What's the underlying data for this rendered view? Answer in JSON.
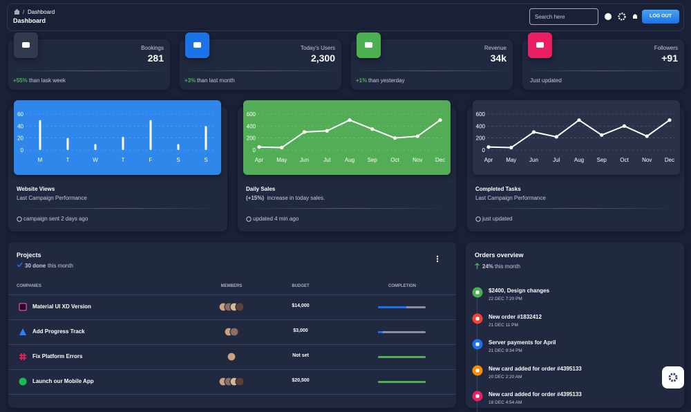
{
  "header": {
    "breadcrumb": "Dashboard",
    "title": "Dashboard",
    "search_placeholder": "Search here",
    "logout": "LOG OUT"
  },
  "stats": [
    {
      "label": "Bookings",
      "value": "281",
      "change": "+55%",
      "change_text": "than lask week",
      "color": "#323a50"
    },
    {
      "label": "Today's Users",
      "value": "2,300",
      "change": "+3%",
      "change_text": "than last month",
      "color": "#1A73E8"
    },
    {
      "label": "Revenue",
      "value": "34k",
      "change": "+1%",
      "change_text": "than yesterday",
      "color": "#4CAF50"
    },
    {
      "label": "Followers",
      "value": "+91",
      "footer": "Just updated",
      "color": "#e91e63"
    }
  ],
  "chart_data": [
    {
      "type": "bar",
      "title": "Website Views",
      "subtitle": "Last Campaign Performance",
      "note": "campaign sent 2 days ago",
      "categories": [
        "M",
        "T",
        "W",
        "T",
        "F",
        "S",
        "S"
      ],
      "values": [
        50,
        20,
        10,
        22,
        50,
        10,
        40
      ],
      "ylim": [
        0,
        60
      ],
      "yticks": [
        0,
        20,
        40,
        60
      ],
      "grid": true,
      "color": "#ffffff",
      "background": "#2f86eb"
    },
    {
      "type": "line",
      "title": "Daily Sales",
      "highlight": "(+15%)",
      "subtitle": "increase in today sales.",
      "note": "updated 4 min ago",
      "categories": [
        "Apr",
        "May",
        "Jun",
        "Jul",
        "Aug",
        "Sep",
        "Oct",
        "Nov",
        "Dec"
      ],
      "values": [
        50,
        40,
        300,
        320,
        500,
        350,
        200,
        230,
        500
      ],
      "ylim": [
        0,
        600
      ],
      "yticks": [
        0,
        200,
        400,
        600
      ],
      "grid": true,
      "color": "#ffffff",
      "background": "#53ad57"
    },
    {
      "type": "line",
      "title": "Completed Tasks",
      "subtitle": "Last Campaign Performance",
      "note": "just updated",
      "categories": [
        "Apr",
        "May",
        "Jun",
        "Jul",
        "Aug",
        "Sep",
        "Oct",
        "Nov",
        "Dec"
      ],
      "values": [
        50,
        40,
        300,
        220,
        500,
        250,
        400,
        230,
        500
      ],
      "ylim": [
        0,
        600
      ],
      "yticks": [
        0,
        200,
        400,
        600
      ],
      "grid": true,
      "color": "#ffffff",
      "background": "#2a3148"
    }
  ],
  "projects": {
    "title": "Projects",
    "done": "30 done",
    "done_text": "this month",
    "columns": [
      "COMPANIES",
      "MEMBERS",
      "BUDGET",
      "COMPLETION"
    ],
    "rows": [
      {
        "name": "Material UI XD Version",
        "members": 4,
        "budget": "$14,000",
        "completion": 60,
        "color": "#1A73E8"
      },
      {
        "name": "Add Progress Track",
        "members": 2,
        "budget": "$3,000",
        "completion": 10,
        "color": "#1A73E8"
      },
      {
        "name": "Fix Platform Errors",
        "members": 1,
        "budget": "Not set",
        "completion": 100,
        "color": "#4CAF50"
      },
      {
        "name": "Launch our Mobile App",
        "members": 4,
        "budget": "$20,500",
        "completion": 100,
        "color": "#4CAF50"
      }
    ]
  },
  "orders": {
    "title": "Orders overview",
    "change": "24%",
    "change_text": "this month",
    "items": [
      {
        "title": "$2400, Design changes",
        "date": "22 DEC 7:20 PM",
        "color": "#4CAF50"
      },
      {
        "title": "New order #1832412",
        "date": "21 DEC 11 PM",
        "color": "#F44335"
      },
      {
        "title": "Server payments for April",
        "date": "21 DEC 9:34 PM",
        "color": "#1A73E8"
      },
      {
        "title": "New card added for order #4395133",
        "date": "20 DEC 2:20 AM",
        "color": "#fb8c00"
      },
      {
        "title": "New card added for order #4395133",
        "date": "18 DEC 4:54 AM",
        "color": "#e91e63"
      }
    ]
  }
}
